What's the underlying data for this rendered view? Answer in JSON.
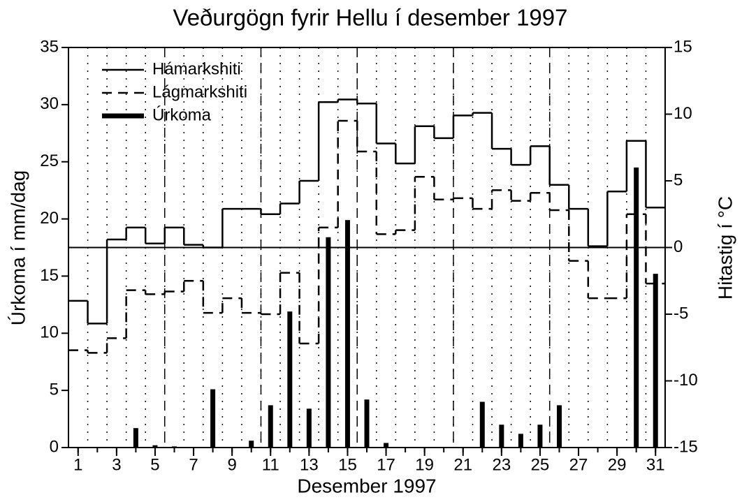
{
  "chart_data": {
    "type": "step-bar",
    "title": "Veðurgögn fyrir Hellu í desember 1997",
    "x_label": "Desember 1997",
    "y_label": "Úrkoma í mm/dag",
    "y2_label": "Hitastig í °C",
    "x": [
      1,
      2,
      3,
      4,
      5,
      6,
      7,
      8,
      9,
      10,
      11,
      12,
      13,
      14,
      15,
      16,
      17,
      18,
      19,
      20,
      21,
      22,
      23,
      24,
      25,
      26,
      27,
      28,
      29,
      30,
      31
    ],
    "xlim": [
      0.5,
      31.5
    ],
    "xticks": [
      1,
      3,
      5,
      7,
      9,
      11,
      13,
      15,
      17,
      19,
      21,
      23,
      25,
      27,
      29,
      31
    ],
    "ylim": [
      0,
      35
    ],
    "yticks": [
      0,
      5,
      10,
      15,
      20,
      25,
      30,
      35
    ],
    "y2lim": [
      -15,
      15
    ],
    "y2ticks": [
      -15,
      -10,
      -5,
      0,
      5,
      10,
      15
    ],
    "grid": true,
    "dashed_vlines": [
      5.5,
      10.5,
      15.5,
      20.5,
      25.5
    ],
    "y2_zero_line": true,
    "legend": "upper-left",
    "series": [
      {
        "name": "Hámarkshiti",
        "type": "step",
        "dash": "solid",
        "color": "#000000",
        "axis": "y2",
        "values": [
          -4.0,
          -5.7,
          0.6,
          1.5,
          0.3,
          1.5,
          0.2,
          0.0,
          2.9,
          2.9,
          2.5,
          3.3,
          5.0,
          10.9,
          11.1,
          10.8,
          7.8,
          6.3,
          9.1,
          8.2,
          9.9,
          10.1,
          7.4,
          6.2,
          7.6,
          4.7,
          2.9,
          0.1,
          4.2,
          8.0,
          3.0
        ]
      },
      {
        "name": "Lágmarkshiti",
        "type": "step",
        "dash": "dashed",
        "color": "#000000",
        "axis": "y2",
        "values": [
          -7.7,
          -7.9,
          -6.8,
          -3.2,
          -3.5,
          -3.3,
          -2.5,
          -4.9,
          -3.8,
          -4.9,
          -5.0,
          -1.9,
          -7.2,
          1.5,
          9.5,
          7.2,
          1.0,
          1.3,
          5.3,
          3.6,
          3.7,
          2.9,
          4.3,
          3.5,
          4.1,
          2.8,
          -1.0,
          -3.8,
          -3.8,
          2.5,
          -2.7
        ]
      },
      {
        "name": "Úrkoma",
        "type": "bar",
        "color": "#000000",
        "values": [
          0,
          0,
          0,
          1.7,
          0.2,
          0.1,
          0,
          5.1,
          0,
          0.6,
          3.7,
          11.9,
          3.4,
          18.4,
          19.9,
          4.2,
          0.4,
          0,
          0,
          0,
          0,
          4.0,
          2.0,
          1.2,
          2.0,
          3.7,
          0,
          0,
          0,
          24.5,
          15.2
        ]
      }
    ]
  }
}
